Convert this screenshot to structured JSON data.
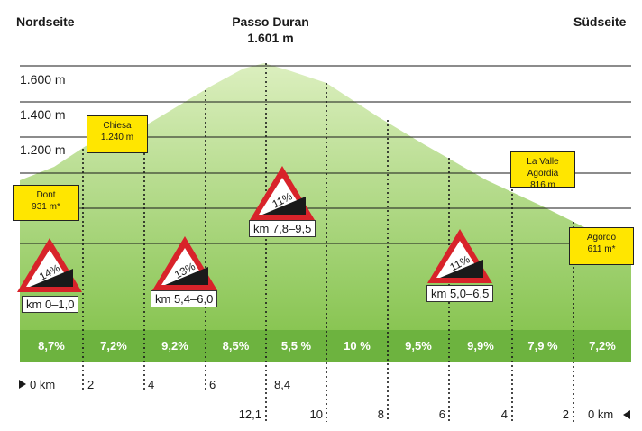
{
  "header": {
    "north": "Nordseite",
    "pass_name": "Passo Duran",
    "pass_height": "1.601 m",
    "south": "Südseite"
  },
  "y_axis": [
    "1.600 m",
    "1.400 m",
    "1.200 m"
  ],
  "places": [
    {
      "name": "Dont",
      "height": "931 m*"
    },
    {
      "name": "Chiesa",
      "height": "1.240 m"
    },
    {
      "name": "La Valle Agordia",
      "height": "816 m"
    },
    {
      "name": "Agordo",
      "height": "611 m*"
    }
  ],
  "signs": [
    {
      "percent": "14%",
      "range": "km 0–1,0"
    },
    {
      "percent": "13%",
      "range": "km 5,4–6,0"
    },
    {
      "percent": "11%",
      "range": "km 7,8–9,5"
    },
    {
      "percent": "11%",
      "range": "km 5,0–6,5"
    }
  ],
  "gradients": [
    "8,7%",
    "7,2%",
    "9,2%",
    "8,5%",
    "5,5 %",
    "10 %",
    "9,5%",
    "9,9%",
    "7,9 %",
    "7,2%"
  ],
  "km_north": {
    "start": "0 km",
    "marks": [
      "2",
      "4",
      "6",
      "8,4"
    ]
  },
  "km_south": {
    "end": "0 km",
    "marks": [
      "12,1",
      "10",
      "8",
      "6",
      "4",
      "2"
    ]
  },
  "colors": {
    "fill_top": "#dcefbf",
    "fill_bottom": "#7fc046",
    "band": "#6db33f",
    "sign_red": "#d8232a",
    "label_yellow": "#ffe600"
  }
}
